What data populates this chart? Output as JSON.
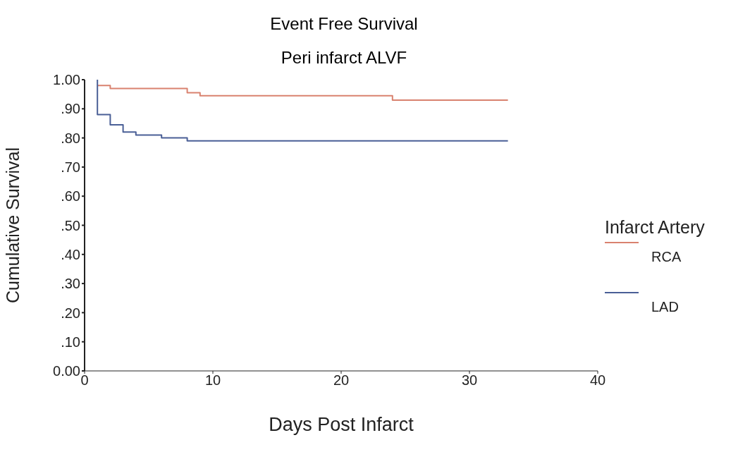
{
  "chart_data": {
    "type": "step",
    "title": "Event Free Survival",
    "subtitle": "Peri infarct ALVF",
    "xlabel": "Days Post Infarct",
    "ylabel": "Cumulative Survival",
    "legend_title": "Infarct  Artery",
    "xlim": [
      0,
      40
    ],
    "xticks": [
      0,
      10,
      20,
      30,
      40
    ],
    "ylim": [
      0,
      1
    ],
    "yticks": [
      {
        "value": 0,
        "label": "0.00"
      },
      {
        "value": 0.1,
        "label": ".10"
      },
      {
        "value": 0.2,
        "label": ".20"
      },
      {
        "value": 0.3,
        "label": ".30"
      },
      {
        "value": 0.4,
        "label": ".40"
      },
      {
        "value": 0.5,
        "label": ".50"
      },
      {
        "value": 0.6,
        "label": ".60"
      },
      {
        "value": 0.7,
        "label": ".70"
      },
      {
        "value": 0.8,
        "label": ".80"
      },
      {
        "value": 0.9,
        "label": ".90"
      },
      {
        "value": 1,
        "label": "1.00"
      }
    ],
    "grid": false,
    "legend": "right",
    "marker": "none",
    "series": [
      {
        "name": "RCA",
        "color": "#d9826f",
        "x": [
          1,
          2,
          8,
          9,
          24,
          33
        ],
        "values": [
          0.98,
          0.97,
          0.955,
          0.945,
          0.93,
          0.93
        ]
      },
      {
        "name": "LAD",
        "color": "#4a5f96",
        "x": [
          1,
          1,
          2,
          3,
          4,
          6,
          8,
          33
        ],
        "values": [
          1.0,
          0.88,
          0.845,
          0.82,
          0.81,
          0.8,
          0.79,
          0.79
        ]
      }
    ]
  }
}
